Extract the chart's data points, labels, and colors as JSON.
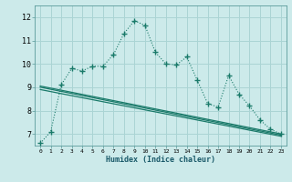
{
  "bg_color": "#cceaea",
  "grid_color": "#aad4d4",
  "line_color": "#1a7a6a",
  "xlabel": "Humidex (Indice chaleur)",
  "x_ticks": [
    0,
    1,
    2,
    3,
    4,
    5,
    6,
    7,
    8,
    9,
    10,
    11,
    12,
    13,
    14,
    15,
    16,
    17,
    18,
    19,
    20,
    21,
    22,
    23
  ],
  "ylim": [
    6.5,
    12.5
  ],
  "yticks": [
    7,
    8,
    9,
    10,
    11,
    12
  ],
  "xlim": [
    -0.5,
    23.5
  ],
  "series1_x": [
    0,
    1,
    2,
    3,
    4,
    5,
    6,
    7,
    8,
    9,
    10,
    11,
    12,
    13,
    14,
    15,
    16,
    17,
    18,
    19,
    20,
    21,
    22,
    23
  ],
  "series1_y": [
    6.6,
    7.1,
    9.1,
    9.8,
    9.7,
    9.9,
    9.9,
    10.4,
    11.3,
    11.85,
    11.65,
    10.5,
    10.0,
    9.95,
    10.3,
    9.3,
    8.3,
    8.15,
    9.5,
    8.7,
    8.2,
    7.6,
    7.2,
    7.0
  ],
  "series2_x": [
    0,
    23
  ],
  "series2_y": [
    9.05,
    7.0
  ],
  "series3_x": [
    0,
    23
  ],
  "series3_y": [
    9.0,
    6.95
  ],
  "series4_x": [
    0,
    23
  ],
  "series4_y": [
    8.9,
    6.9
  ]
}
